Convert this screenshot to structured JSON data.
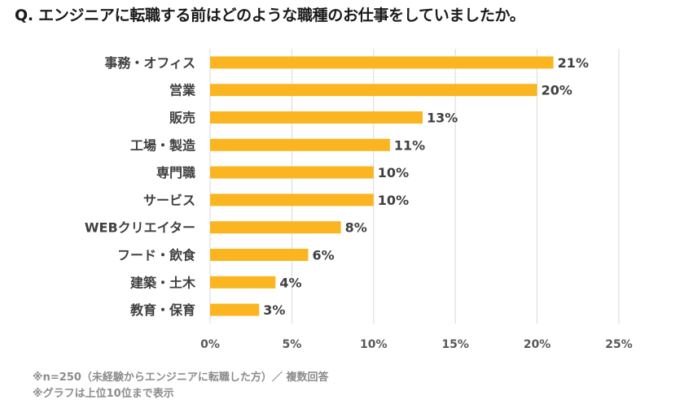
{
  "title": "Q. エンジニアに転職する前はどのような職種のお仕事をしていましたか。",
  "notes": {
    "line1": "※n=250（未経験からエンジニアに転職した方）／ 複数回答",
    "line2": "※グラフは上位10位まで表示"
  },
  "colors": {
    "bar": "#FBB520",
    "grid": "#D9D9D9",
    "axis_text": "#595959",
    "label_text": "#404040"
  },
  "chart_data": {
    "type": "bar",
    "orientation": "horizontal",
    "categories": [
      "事務・オフィス",
      "営業",
      "販売",
      "工場・製造",
      "専門職",
      "サービス",
      "WEBクリエイター",
      "フード・飲食",
      "建築・土木",
      "教育・保育"
    ],
    "values": [
      21,
      20,
      13,
      11,
      10,
      10,
      8,
      6,
      4,
      3
    ],
    "data_labels": [
      "21%",
      "20%",
      "13%",
      "11%",
      "10%",
      "10%",
      "8%",
      "6%",
      "4%",
      "3%"
    ],
    "xlim": [
      0,
      25
    ],
    "xticks": [
      0,
      5,
      10,
      15,
      20,
      25
    ],
    "xtick_labels": [
      "0%",
      "5%",
      "10%",
      "15%",
      "20%",
      "25%"
    ],
    "grid": true
  }
}
